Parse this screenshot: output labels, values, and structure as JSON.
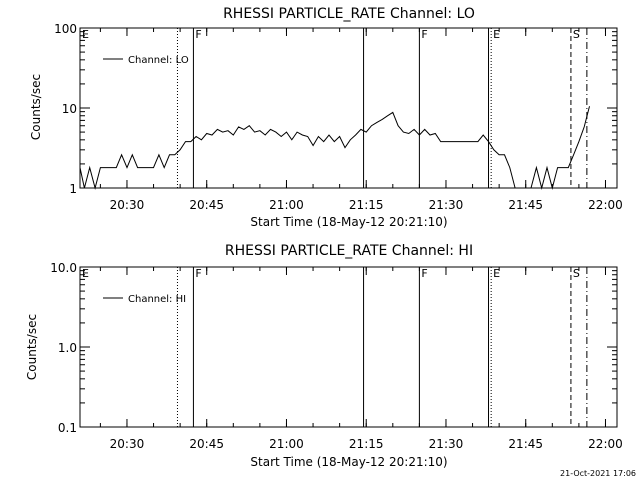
{
  "footer": {
    "timestamp": "21-Oct-2021 17:06"
  },
  "chart_data": [
    {
      "type": "line",
      "title": "RHESSI PARTICLE_RATE Channel: LO",
      "xlabel": "Start Time (18-May-12 20:21:10)",
      "ylabel": "Counts/sec",
      "yscale": "log",
      "ylim": [
        1,
        100
      ],
      "xlim": [
        "20:21:10",
        "22:02:10"
      ],
      "x_ticks": [
        "20:30",
        "20:45",
        "21:00",
        "21:15",
        "21:30",
        "21:45",
        "22:00"
      ],
      "y_ticks": [
        "1",
        "10",
        "100"
      ],
      "legend": {
        "label": "Channel: LO",
        "position": "top-left"
      },
      "markers": [
        {
          "label": "E",
          "time": "20:21:10",
          "style": "none"
        },
        {
          "label": "",
          "time": "20:39:30",
          "style": "dotted"
        },
        {
          "label": "F",
          "time": "20:42:30",
          "style": "solid"
        },
        {
          "label": "",
          "time": "21:14:30",
          "style": "solid"
        },
        {
          "label": "F",
          "time": "21:25:00",
          "style": "solid"
        },
        {
          "label": "",
          "time": "21:38:00",
          "style": "solid"
        },
        {
          "label": "E",
          "time": "21:38:30",
          "style": "dotted"
        },
        {
          "label": "S",
          "time": "21:53:30",
          "style": "dashed"
        },
        {
          "label": "",
          "time": "21:56:30",
          "style": "dashdot"
        }
      ],
      "series": [
        {
          "x": [
            "20:21:10",
            "20:22:00",
            "20:23:00",
            "20:24:00",
            "20:25:00",
            "20:26:00",
            "20:27:00",
            "20:28:00",
            "20:29:00",
            "20:30:00",
            "20:31:00",
            "20:32:00",
            "20:33:00",
            "20:34:00",
            "20:35:00",
            "20:36:00",
            "20:37:00",
            "20:38:00",
            "20:39:00",
            "20:40:00",
            "20:41:00",
            "20:42:00",
            "20:43:00",
            "20:44:00",
            "20:45:00",
            "20:46:00",
            "20:47:00",
            "20:48:00",
            "20:49:00",
            "20:50:00",
            "20:51:00",
            "20:52:00",
            "20:53:00",
            "20:54:00",
            "20:55:00",
            "20:56:00",
            "20:57:00",
            "20:58:00",
            "20:59:00",
            "21:00:00",
            "21:01:00",
            "21:02:00",
            "21:03:00",
            "21:04:00",
            "21:05:00",
            "21:06:00",
            "21:07:00",
            "21:08:00",
            "21:09:00",
            "21:10:00",
            "21:11:00",
            "21:12:00",
            "21:13:00",
            "21:14:00",
            "21:15:00",
            "21:16:00",
            "21:17:00",
            "21:18:00",
            "21:19:00",
            "21:20:00",
            "21:21:00",
            "21:22:00",
            "21:23:00",
            "21:24:00",
            "21:25:00",
            "21:26:00",
            "21:27:00",
            "21:28:00",
            "21:29:00",
            "21:30:00",
            "21:31:00",
            "21:32:00",
            "21:33:00",
            "21:34:00",
            "21:35:00",
            "21:36:00",
            "21:37:00",
            "21:38:00",
            "21:39:00",
            "21:40:00",
            "21:41:00",
            "21:42:00",
            "21:43:00",
            "21:44:00",
            "21:45:00",
            "21:46:00",
            "21:47:00",
            "21:48:00",
            "21:49:00",
            "21:50:00",
            "21:51:00",
            "21:52:00",
            "21:53:00",
            "21:54:00",
            "21:55:00",
            "21:56:00",
            "21:57:00"
          ],
          "y": [
            1.8,
            1.0,
            1.8,
            1.0,
            1.8,
            1.8,
            1.8,
            1.8,
            2.6,
            1.8,
            2.6,
            1.8,
            1.8,
            1.8,
            1.8,
            2.6,
            1.8,
            2.6,
            2.6,
            3.0,
            3.8,
            3.8,
            4.4,
            4.0,
            4.8,
            4.6,
            5.4,
            5.0,
            5.2,
            4.6,
            5.8,
            5.4,
            6.0,
            5.0,
            5.2,
            4.6,
            5.4,
            5.0,
            4.4,
            5.0,
            4.0,
            5.0,
            4.6,
            4.4,
            3.4,
            4.4,
            3.8,
            4.6,
            3.8,
            4.4,
            3.2,
            4.0,
            4.6,
            5.4,
            5.0,
            6.0,
            6.6,
            7.2,
            8.0,
            8.8,
            6.0,
            5.0,
            4.8,
            5.4,
            4.6,
            5.4,
            4.6,
            4.8,
            3.8,
            3.8,
            3.8,
            3.8,
            3.8,
            3.8,
            3.8,
            3.8,
            4.6,
            3.8,
            3.0,
            2.6,
            2.6,
            1.8,
            1.0,
            1.0,
            1.0,
            1.0,
            1.8,
            1.0,
            1.8,
            1.0,
            1.8,
            1.8,
            1.8,
            2.6,
            3.8,
            5.8,
            10.5
          ]
        }
      ]
    },
    {
      "type": "line",
      "title": "RHESSI PARTICLE_RATE Channel: HI",
      "xlabel": "Start Time (18-May-12 20:21:10)",
      "ylabel": "Counts/sec",
      "yscale": "log",
      "ylim": [
        0.1,
        10
      ],
      "xlim": [
        "20:21:10",
        "22:02:10"
      ],
      "x_ticks": [
        "20:30",
        "20:45",
        "21:00",
        "21:15",
        "21:30",
        "21:45",
        "22:00"
      ],
      "y_ticks": [
        "0.1",
        "1.0",
        "10.0"
      ],
      "legend": {
        "label": "Channel: HI",
        "position": "top-left"
      },
      "markers": [
        {
          "label": "E",
          "time": "20:21:10",
          "style": "none"
        },
        {
          "label": "",
          "time": "20:39:30",
          "style": "dotted"
        },
        {
          "label": "F",
          "time": "20:42:30",
          "style": "solid"
        },
        {
          "label": "",
          "time": "21:14:30",
          "style": "solid"
        },
        {
          "label": "F",
          "time": "21:25:00",
          "style": "solid"
        },
        {
          "label": "",
          "time": "21:38:00",
          "style": "solid"
        },
        {
          "label": "E",
          "time": "21:38:30",
          "style": "dotted"
        },
        {
          "label": "S",
          "time": "21:53:30",
          "style": "dashed"
        },
        {
          "label": "",
          "time": "21:56:30",
          "style": "dashdot"
        }
      ],
      "series": [
        {
          "x": [],
          "y": []
        }
      ]
    }
  ]
}
